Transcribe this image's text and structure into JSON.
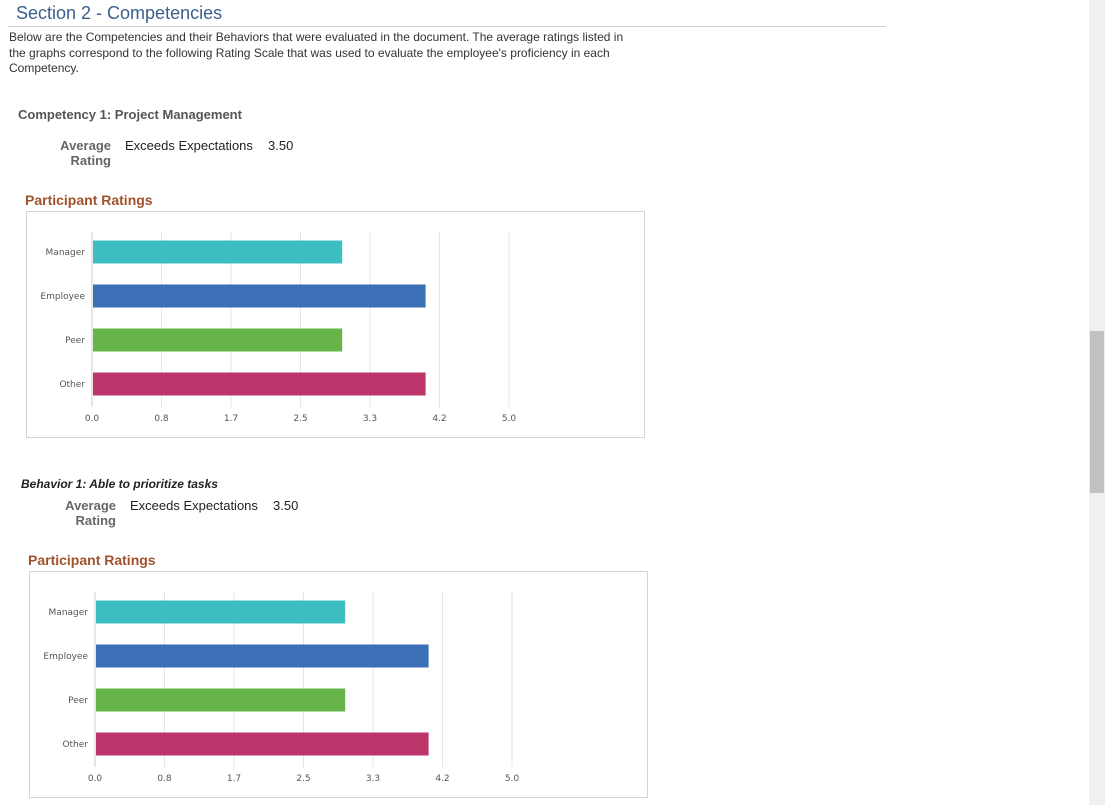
{
  "section_title": "Section 2 - Competencies",
  "intro_text": "Below are the Competencies and their Behaviors that were evaluated in the document. The average ratings listed in the graphs correspond to the following Rating Scale that was used to evaluate the employee's proficiency in each Competency.",
  "competency": {
    "title": "Competency 1: Project Management",
    "average_label_line1": "Average",
    "average_label_line2": "Rating",
    "average_text": "Exceeds Expectations",
    "average_value": "3.50",
    "ratings_heading": "Participant Ratings"
  },
  "behavior": {
    "title": "Behavior 1: Able to prioritize tasks",
    "average_label_line1": "Average",
    "average_label_line2": "Rating",
    "average_text": "Exceeds Expectations",
    "average_value": "3.50",
    "ratings_heading": "Participant Ratings"
  },
  "chart_data": [
    {
      "type": "bar",
      "orientation": "horizontal",
      "categories": [
        "Manager",
        "Employee",
        "Peer",
        "Other"
      ],
      "values": [
        3.0,
        4.0,
        3.0,
        4.0
      ],
      "colors": [
        "#3dbfc1",
        "#3b6fb6",
        "#67b54a",
        "#bc366b"
      ],
      "xticks": [
        "0.0",
        "0.8",
        "1.7",
        "2.5",
        "3.3",
        "4.2",
        "5.0"
      ],
      "xlim": [
        0,
        5
      ],
      "grid": true
    },
    {
      "type": "bar",
      "orientation": "horizontal",
      "categories": [
        "Manager",
        "Employee",
        "Peer",
        "Other"
      ],
      "values": [
        3.0,
        4.0,
        3.0,
        4.0
      ],
      "colors": [
        "#3dbfc1",
        "#3b6fb6",
        "#67b54a",
        "#bc366b"
      ],
      "xticks": [
        "0.0",
        "0.8",
        "1.7",
        "2.5",
        "3.3",
        "4.2",
        "5.0"
      ],
      "xlim": [
        0,
        5
      ],
      "grid": true
    }
  ]
}
